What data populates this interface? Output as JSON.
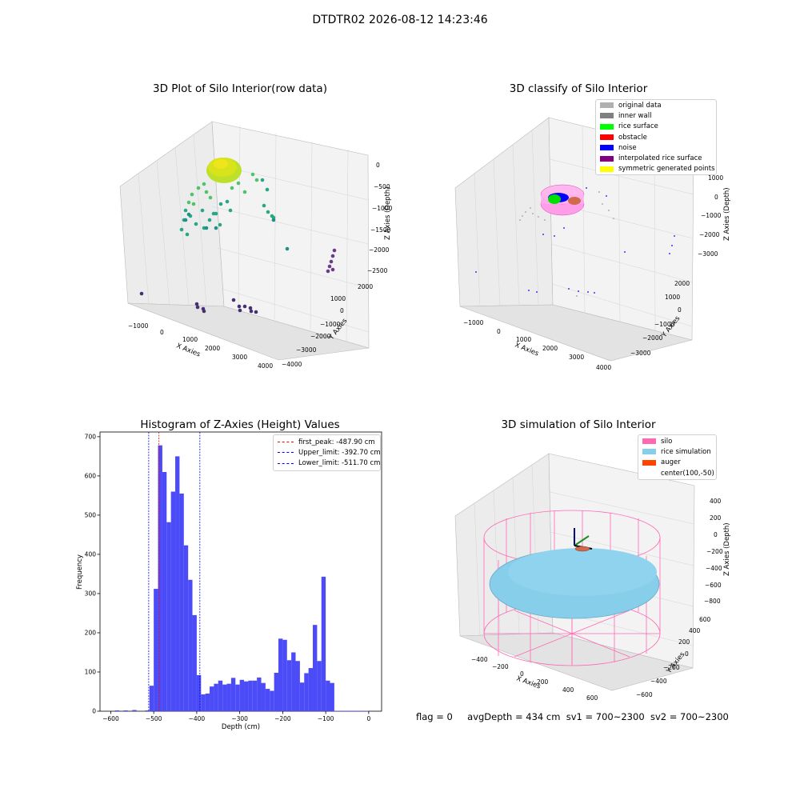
{
  "figure_title": "DTDTR02 2026-08-12 14:23:46",
  "status": {
    "flag": "flag = 0",
    "avg_depth": "avgDepth = 434 cm",
    "sv1": "sv1 = 700~2300",
    "sv2": "sv2 = 700~2300"
  },
  "colors": {
    "hist_bar": "#4b4bf7",
    "first_peak": "#ff0000",
    "limits": "#0000ff",
    "silo": "#ff69b4",
    "rice_simulation": "#87ceeb",
    "auger": "#ff4500"
  },
  "chart_data": [
    {
      "type": "scatter",
      "title": "3D Plot of Silo Interior(row data)",
      "xlabel": "X Axies",
      "ylabel": "Y Axies",
      "zlabel": "Z Axies (Depth)",
      "x_ticks": [
        "−1000",
        "0",
        "1000",
        "2000",
        "3000",
        "4000"
      ],
      "y_ticks": [
        "−4000",
        "−3000",
        "−2000",
        "−1000",
        "0",
        "1000",
        "2000"
      ],
      "z_ticks": [
        "0",
        "−500",
        "−1000",
        "−1500",
        "−2000",
        "−2500"
      ],
      "colormap": "viridis"
    },
    {
      "type": "scatter",
      "title": "3D classify of Silo Interior",
      "xlabel": "X Axies",
      "ylabel": "Y Axies",
      "zlabel": "Z Axies (Depth)",
      "x_ticks": [
        "−1000",
        "0",
        "1000",
        "2000",
        "3000",
        "4000"
      ],
      "y_ticks": [
        "−3000",
        "−2000",
        "−1000",
        "0",
        "1000",
        "2000"
      ],
      "z_ticks": [
        "1000",
        "0",
        "−1000",
        "−2000",
        "−3000"
      ],
      "legend": [
        {
          "label": "original data",
          "color": "#b0b0b0"
        },
        {
          "label": "inner wall",
          "color": "#808080"
        },
        {
          "label": "rice surface",
          "color": "#00ff00"
        },
        {
          "label": "obstacle",
          "color": "#ff0000"
        },
        {
          "label": "noise",
          "color": "#0000ff"
        },
        {
          "label": "interpolated rice surface",
          "color": "#800080"
        },
        {
          "label": "symmetric generated points",
          "color": "#ffff00"
        }
      ]
    },
    {
      "type": "bar",
      "title": "Histogram of Z-Axies (Height) Values",
      "xlabel": "Depth (cm)",
      "ylabel": "Frequency",
      "xlim": [
        -625,
        30
      ],
      "ylim": [
        0,
        712
      ],
      "x_ticks": [
        -600,
        -500,
        -400,
        -300,
        -200,
        -100,
        0
      ],
      "x_tick_labels": [
        "−600",
        "−500",
        "−400",
        "−300",
        "−200",
        "−100",
        "0"
      ],
      "y_ticks": [
        0,
        100,
        200,
        300,
        400,
        500,
        600,
        700
      ],
      "bin_width": 10,
      "bin_starts": [
        -590,
        -570,
        -550,
        -520,
        -510,
        -500,
        -490,
        -480,
        -470,
        -460,
        -450,
        -440,
        -430,
        -420,
        -410,
        -400,
        -390,
        -380,
        -370,
        -360,
        -350,
        -340,
        -330,
        -320,
        -310,
        -300,
        -290,
        -280,
        -270,
        -260,
        -250,
        -240,
        -230,
        -220,
        -210,
        -200,
        -190,
        -180,
        -170,
        -160,
        -150,
        -140,
        -130,
        -120,
        -110,
        -100,
        -90,
        -80,
        -70,
        -60,
        -50,
        -40,
        -30,
        -20,
        -10
      ],
      "values": [
        2,
        2,
        3,
        2,
        65,
        312,
        678,
        610,
        482,
        560,
        650,
        555,
        423,
        335,
        245,
        92,
        43,
        45,
        63,
        70,
        78,
        68,
        70,
        85,
        68,
        80,
        76,
        78,
        78,
        86,
        72,
        57,
        52,
        98,
        185,
        182,
        130,
        150,
        128,
        73,
        97,
        110,
        220,
        128,
        343,
        78,
        72,
        1,
        1,
        1,
        1,
        1,
        1,
        1,
        1
      ],
      "vlines": [
        {
          "x": -487.9,
          "label": "first_peak: -487.90 cm",
          "color": "#ff0000"
        },
        {
          "x": -392.7,
          "label": "Upper_limit: -392.70 cm",
          "color": "#0000ff"
        },
        {
          "x": -511.7,
          "label": "Lower_limit: -511.70 cm",
          "color": "#0000ff"
        }
      ]
    },
    {
      "type": "other",
      "title": "3D simulation of Silo Interior",
      "xlabel": "X Axies",
      "ylabel": "Y Axies",
      "zlabel": "Z Axies (Depth)",
      "x_ticks": [
        "−400",
        "−200",
        "0",
        "200",
        "400",
        "600"
      ],
      "y_ticks": [
        "−600",
        "−400",
        "−200",
        "0",
        "200",
        "400",
        "600"
      ],
      "z_ticks": [
        "400",
        "200",
        "0",
        "−200",
        "−400",
        "−600",
        "−800"
      ],
      "legend": [
        {
          "label": "silo",
          "color": "#ff69b4"
        },
        {
          "label": "rice simulation",
          "color": "#87ceeb"
        },
        {
          "label": "auger",
          "color": "#ff4500"
        },
        {
          "label": "center(100,-50)",
          "color": ""
        }
      ]
    }
  ]
}
